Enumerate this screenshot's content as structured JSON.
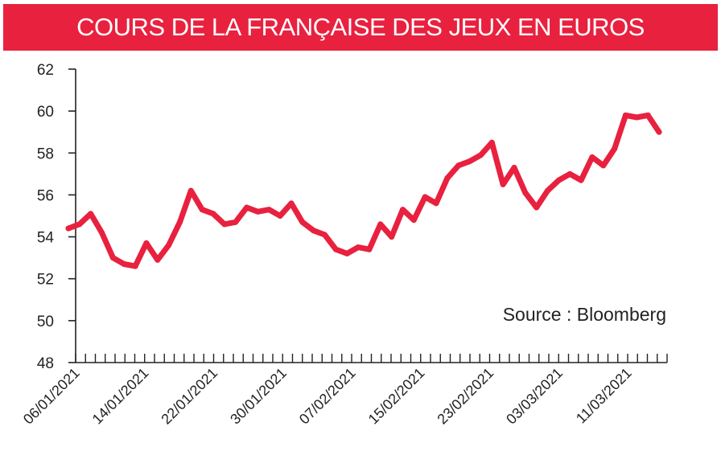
{
  "colors": {
    "accent": "#e8213f",
    "axis": "#222222",
    "banner_text": "#ffffff"
  },
  "header": {
    "title": "COURS DE LA FRANÇAISE DES JEUX EN EUROS"
  },
  "source": "Source : Bloomberg",
  "chart_data": {
    "type": "line",
    "title": "COURS DE LA FRANÇAISE DES JEUX EN EUROS",
    "xlabel": "",
    "ylabel": "",
    "ylim": [
      48,
      62
    ],
    "yticks": [
      48,
      50,
      52,
      54,
      56,
      58,
      60,
      62
    ],
    "grid": false,
    "x_tick_labels": [
      "06/01/2021",
      "14/01/2021",
      "22/01/2021",
      "30/01/2021",
      "07/02/2021",
      "15/02/2021",
      "23/02/2021",
      "03/03/2021",
      "11/03/2021"
    ],
    "series": [
      {
        "values": [
          54.4,
          54.6,
          55.1,
          54.2,
          53.0,
          52.7,
          52.6,
          53.7,
          52.9,
          53.6,
          54.7,
          56.2,
          55.3,
          55.1,
          54.6,
          54.7,
          55.4,
          55.2,
          55.3,
          55.0,
          55.6,
          54.7,
          54.3,
          54.1,
          53.4,
          53.2,
          53.5,
          53.4,
          54.6,
          54.0,
          55.3,
          54.8,
          55.9,
          55.6,
          56.8,
          57.4,
          57.6,
          57.9,
          58.5,
          56.5,
          57.3,
          56.1,
          55.4,
          56.2,
          56.7,
          57.0,
          56.7,
          57.8,
          57.4,
          58.2,
          59.8,
          59.7,
          59.8,
          59.0
        ]
      }
    ]
  }
}
